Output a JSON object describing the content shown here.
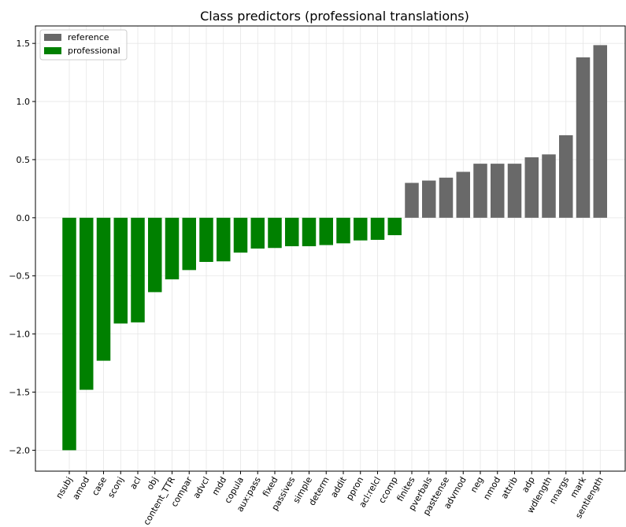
{
  "chart_data": {
    "type": "bar",
    "title": "Class predictors (professional translations)",
    "xlabel": "",
    "ylabel": "",
    "ylim": [
      -2.18,
      1.65
    ],
    "yticks": [
      -2.0,
      -1.5,
      -1.0,
      -0.5,
      0.0,
      0.5,
      1.0,
      1.5
    ],
    "ytick_labels": [
      "−2.0",
      "−1.5",
      "−1.0",
      "−0.5",
      "0.0",
      "0.5",
      "1.0",
      "1.5"
    ],
    "grid": true,
    "legend_position": "top-left",
    "series": [
      {
        "name": "reference",
        "color": "#696969"
      },
      {
        "name": "professional",
        "color": "#008000"
      }
    ],
    "categories": [
      "nsubj",
      "amod",
      "case",
      "sconj",
      "acl",
      "obj",
      "content_TTR",
      "compar",
      "advcl",
      "mdd",
      "copula",
      "aux:pass",
      "fixed",
      "passives",
      "simple",
      "determ",
      "addit",
      "ppron",
      "acl:relcl",
      "ccomp",
      "finites",
      "pverbals",
      "pasttense",
      "advmod",
      "neg",
      "nmod",
      "attrib",
      "adp",
      "wdlength",
      "nnargs",
      "mark",
      "sentlength"
    ],
    "values": [
      -2.0,
      -1.48,
      -1.23,
      -0.91,
      -0.9,
      -0.64,
      -0.53,
      -0.45,
      -0.38,
      -0.375,
      -0.3,
      -0.265,
      -0.26,
      -0.245,
      -0.245,
      -0.235,
      -0.22,
      -0.195,
      -0.19,
      -0.15,
      0.3,
      0.32,
      0.345,
      0.395,
      0.465,
      0.465,
      0.465,
      0.52,
      0.545,
      0.71,
      1.38,
      1.485
    ],
    "groups": [
      "professional",
      "professional",
      "professional",
      "professional",
      "professional",
      "professional",
      "professional",
      "professional",
      "professional",
      "professional",
      "professional",
      "professional",
      "professional",
      "professional",
      "professional",
      "professional",
      "professional",
      "professional",
      "professional",
      "professional",
      "reference",
      "reference",
      "reference",
      "reference",
      "reference",
      "reference",
      "reference",
      "reference",
      "reference",
      "reference",
      "reference",
      "reference"
    ]
  }
}
